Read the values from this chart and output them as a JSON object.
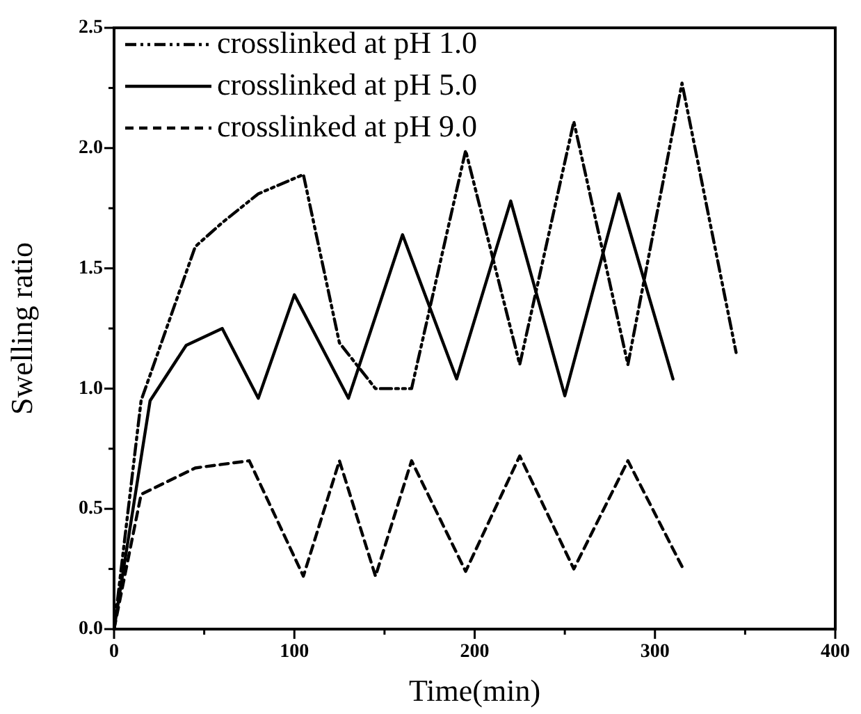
{
  "chart_data": {
    "type": "line",
    "xlabel": "Time(min)",
    "ylabel": "Swelling ratio",
    "xlim": [
      0,
      400
    ],
    "ylim": [
      0,
      2.5
    ],
    "xticks": [
      0,
      {
        "value": 50,
        "label": null
      },
      100,
      {
        "value": 150,
        "label": null
      },
      200,
      {
        "value": 250,
        "label": null
      },
      300,
      {
        "value": 350,
        "label": null
      },
      400
    ],
    "yticks": [
      {
        "value": 0,
        "label": "0.0"
      },
      {
        "value": 0.25,
        "label": null
      },
      {
        "value": 0.5,
        "label": "0.5"
      },
      {
        "value": 0.75,
        "label": null
      },
      {
        "value": 1,
        "label": "1.0"
      },
      {
        "value": 1.25,
        "label": null
      },
      {
        "value": 1.5,
        "label": "1.5"
      },
      {
        "value": 1.75,
        "label": null
      },
      {
        "value": 2,
        "label": "2.0"
      },
      {
        "value": 2.25,
        "label": null
      },
      {
        "value": 2.5,
        "label": "2.5"
      }
    ],
    "grid": false,
    "legend": "top left",
    "marker": "none",
    "series": [
      {
        "name": "crosslinked at pH 1.0",
        "color": "#000000",
        "line_style": "dashdot",
        "x": [
          0,
          15,
          45,
          60,
          80,
          105,
          125,
          145,
          165,
          195,
          225,
          255,
          285,
          315,
          345
        ],
        "values": [
          0,
          0.95,
          1.59,
          1.69,
          1.81,
          1.89,
          1.19,
          1.0,
          1.0,
          1.99,
          1.1,
          2.11,
          1.1,
          2.27,
          1.15
        ]
      },
      {
        "name": "crosslinked at pH 5.0",
        "color": "#000000",
        "line_style": "solid",
        "x": [
          0,
          20,
          40,
          60,
          80,
          100,
          130,
          160,
          190,
          220,
          250,
          280,
          310
        ],
        "values": [
          0,
          0.95,
          1.18,
          1.25,
          0.96,
          1.39,
          0.96,
          1.64,
          1.04,
          1.78,
          0.97,
          1.81,
          1.04
        ]
      },
      {
        "name": "crosslinked at pH 9.0",
        "color": "#000000",
        "line_style": "dashed",
        "x": [
          0,
          15,
          45,
          75,
          105,
          125,
          145,
          165,
          195,
          225,
          255,
          285,
          315
        ],
        "values": [
          0,
          0.56,
          0.67,
          0.7,
          0.22,
          0.7,
          0.22,
          0.7,
          0.24,
          0.72,
          0.25,
          0.7,
          0.26
        ]
      }
    ]
  }
}
